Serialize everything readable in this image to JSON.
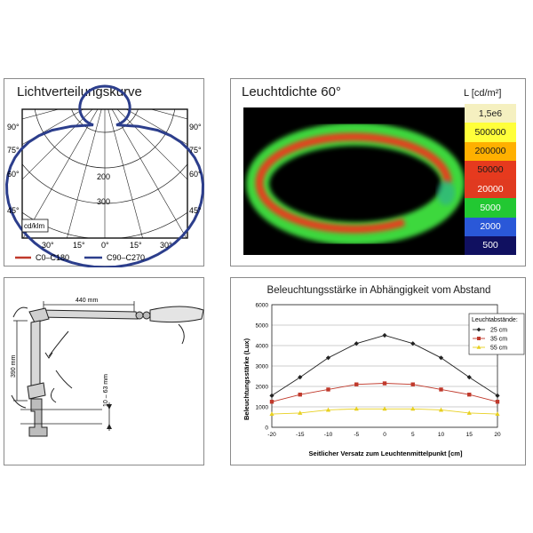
{
  "polar": {
    "title": "Lichtverteilungskurve",
    "unit_label": "cd/klm",
    "side_angles": [
      "90°",
      "75°",
      "60°",
      "45°"
    ],
    "bottom_angles": [
      "30°",
      "15°",
      "0°",
      "15°",
      "30°"
    ],
    "ring_values": [
      "200",
      "300"
    ],
    "legend": [
      {
        "label": "C0–C180",
        "color": "#c0392b"
      },
      {
        "label": "C90–C270",
        "color": "#2c3e8c"
      }
    ],
    "chart_data": {
      "type": "polar",
      "series": [
        {
          "name": "C0–C180",
          "color": "#c0392b",
          "visible": false
        },
        {
          "name": "C90–C270",
          "color": "#2c3e8c",
          "visible": true
        }
      ]
    }
  },
  "lum": {
    "title": "Leuchtdichte 60°",
    "unit": "L [cd/m²]",
    "scale": [
      {
        "label": "1,5e6",
        "color": "#f5f0c0",
        "text": "#1a1a1a"
      },
      {
        "label": "500000",
        "color": "#ffff3a",
        "text": "#1a1a1a"
      },
      {
        "label": "200000",
        "color": "#ffb000",
        "text": "#1a1a1a"
      },
      {
        "label": "50000",
        "color": "#e63a1e",
        "text": "#1a1a1a"
      },
      {
        "label": "20000",
        "color": "#e03a20",
        "text": "#ffffff"
      },
      {
        "label": "5000",
        "color": "#22c832",
        "text": "#ffffff"
      },
      {
        "label": "2000",
        "color": "#2a58d8",
        "text": "#ffffff"
      },
      {
        "label": "500",
        "color": "#101060",
        "text": "#ffffff"
      }
    ]
  },
  "lamp": {
    "arm_length": "440 mm",
    "height": "390 mm",
    "clamp": "10 – 63 mm"
  },
  "curve": {
    "title": "Beleuchtungsstärke in Abhängigkeit vom Abstand",
    "legend_title": "Leuchtabstände:",
    "chart_data": {
      "type": "line",
      "title": "Beleuchtungsstärke in Abhängigkeit vom Abstand",
      "xlabel": "Seitlicher Versatz zum Leuchtenmittelpunkt [cm]",
      "ylabel": "Beleuchtungsstärke (Lux)",
      "x": [
        -20,
        -15,
        -10,
        -5,
        0,
        5,
        10,
        15,
        20
      ],
      "xlim": [
        -20,
        20
      ],
      "ylim": [
        0,
        6000
      ],
      "yticks": [
        0,
        1000,
        2000,
        3000,
        4000,
        5000,
        6000
      ],
      "grid": "horizontal",
      "legend_position": "top-right",
      "series": [
        {
          "name": "25 cm",
          "color": "#222222",
          "marker": "diamond",
          "values": [
            1550,
            2450,
            3400,
            4100,
            4500,
            4100,
            3400,
            2450,
            1550
          ]
        },
        {
          "name": "35 cm",
          "color": "#c0392b",
          "marker": "square",
          "values": [
            1250,
            1600,
            1850,
            2100,
            2150,
            2100,
            1850,
            1600,
            1250
          ]
        },
        {
          "name": "55 cm",
          "color": "#e8d020",
          "marker": "triangle",
          "values": [
            650,
            700,
            850,
            900,
            900,
            900,
            850,
            700,
            650
          ]
        }
      ]
    }
  }
}
